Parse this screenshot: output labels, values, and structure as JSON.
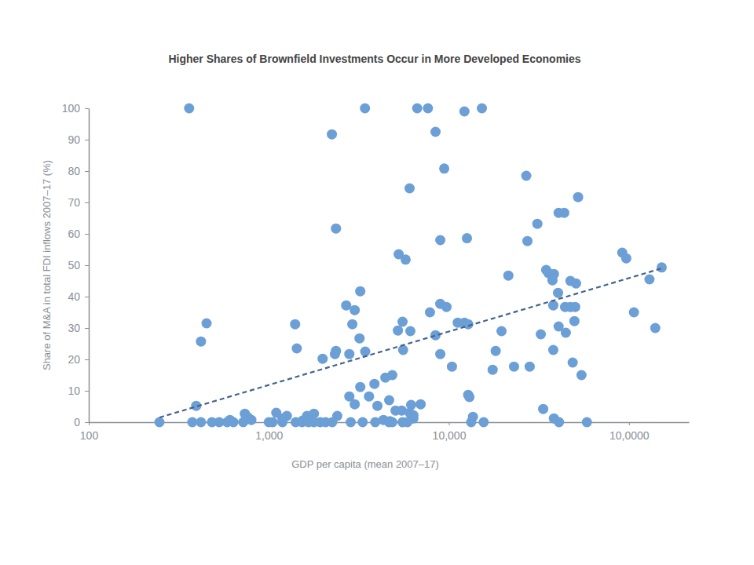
{
  "chart_data": {
    "type": "scatter",
    "title": "Higher Shares of Brownfield Investments Occur in More Developed Economies",
    "x_label": "GDP per capita (mean 2007–17)",
    "y_label": "Share of M&A in total FDI inflows 2007–17 (%)",
    "log": "x",
    "grid": false,
    "xlim": [
      100,
      215000
    ],
    "ylim": [
      0,
      100
    ],
    "xticks": [
      100,
      {
        "value": 1000,
        "label": "1,000"
      },
      {
        "value": 10000,
        "label": "10,000"
      },
      {
        "value": 100000,
        "label": "10,0000"
      }
    ],
    "yticks": [
      0,
      10,
      20,
      30,
      40,
      50,
      60,
      70,
      80,
      90,
      100
    ],
    "series": [
      {
        "type": "scatter",
        "marker": "circle",
        "color": "#6b9fd6",
        "x": [
          361,
          3420,
          6670,
          7650,
          12200,
          15250,
          8430,
          2240,
          9420,
          26900,
          6050,
          52200,
          40700,
          43700,
          31000,
          2360,
          27300,
          8960,
          12600,
          5260,
          5750,
          91800,
          96600,
          21400,
          34700,
          35700,
          38300,
          37600,
          47300,
          50800,
          130000,
          152000,
          3220,
          40400,
          2690,
          3000,
          8960,
          9700,
          7850,
          38000,
          44200,
          47300,
          50300,
          106600,
          451,
          1400,
          2910,
          5530,
          11200,
          12200,
          12800,
          49800,
          40700,
          140000,
          3190,
          420,
          8430,
          32400,
          6110,
          5210,
          44600,
          19600,
          1430,
          2360,
          2330,
          2800,
          3430,
          5570,
          8960,
          18200,
          38000,
          1990,
          10400,
          17500,
          23000,
          28100,
          48700,
          54500,
          4850,
          4440,
          3220,
          3860,
          3600,
          2800,
          3000,
          4010,
          12800,
          13000,
          6970,
          6170,
          4660,
          33400,
          395,
          5060,
          5470,
          6050,
          13600,
          38300,
          736,
          1100,
          1260,
          1630,
          1780,
          2400,
          767,
          608,
          800,
          1190,
          1540,
          4330,
          4700,
          6350,
          6350,
          247,
          376,
          420,
          483,
          530,
          587,
          636,
          721,
          1000,
          1050,
          1190,
          1410,
          1530,
          1660,
          1780,
          1930,
          2070,
          2250,
          2850,
          3320,
          3900,
          4650,
          4850,
          5530,
          5880,
          13300,
          15600,
          40900,
          58400
        ],
        "values": [
          100,
          100,
          100,
          100,
          99,
          100,
          92.5,
          91.7,
          80.8,
          78.5,
          74.5,
          71.7,
          66.7,
          66.7,
          63.2,
          61.7,
          57.7,
          58,
          58.6,
          53.5,
          51.8,
          54,
          52.2,
          46.7,
          48.5,
          47.5,
          47.2,
          45.2,
          45,
          44.2,
          45.5,
          49.3,
          41.7,
          41.2,
          37.2,
          35.7,
          37.7,
          36.7,
          35,
          37.2,
          36.7,
          36.7,
          36.7,
          35,
          31.5,
          31.2,
          31.2,
          32,
          31.7,
          31.7,
          31.2,
          32.2,
          30.5,
          30,
          26.7,
          25.7,
          27.7,
          28,
          29,
          29.2,
          28.5,
          29,
          23.5,
          22.7,
          21.7,
          21.7,
          22.5,
          23,
          21.7,
          22.7,
          23,
          20.2,
          17.7,
          16.7,
          17.7,
          17.7,
          19,
          15,
          15,
          14.2,
          11.2,
          12.2,
          8.2,
          8.2,
          5.7,
          5.2,
          8.7,
          8,
          5.7,
          5.5,
          7,
          4.2,
          5.2,
          3.7,
          3.7,
          3,
          1.7,
          1.2,
          2.7,
          3,
          2,
          2,
          2.7,
          2,
          1.5,
          0.7,
          0.7,
          1.2,
          0.5,
          0.7,
          0.3,
          1.2,
          2.2,
          0,
          0,
          0,
          0,
          0,
          0,
          0,
          0,
          0,
          0,
          0,
          0,
          0,
          0,
          0,
          0,
          0,
          0,
          0,
          0,
          0,
          0,
          0,
          0,
          0,
          0,
          0,
          0,
          0
        ]
      },
      {
        "type": "line",
        "line_style": "dashed",
        "color": "#44648c",
        "x": [
          247,
          152000
        ],
        "values": [
          1.5,
          49
        ]
      }
    ]
  }
}
